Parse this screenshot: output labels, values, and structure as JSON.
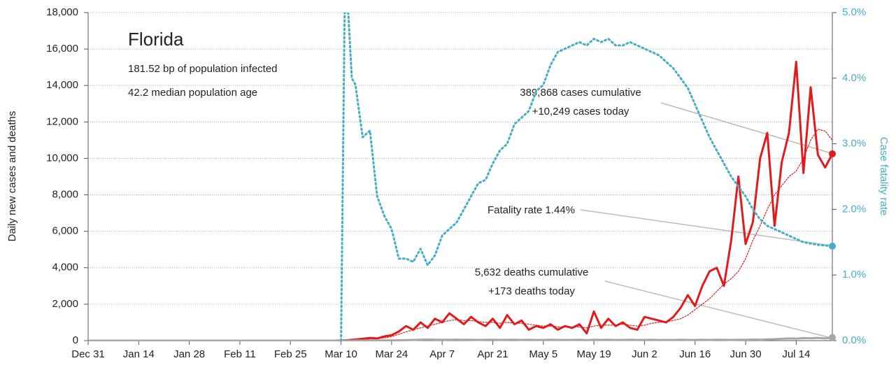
{
  "chart_data": {
    "type": "line",
    "title": "Florida",
    "subtitle": [
      "181.52 bp of population infected",
      "42.2 median population age"
    ],
    "ylabel": "Daily new cases and deaths",
    "y2label": "Case fatality rate",
    "annotations": {
      "cases": [
        "389,868 cases cumulative",
        "+10,249 cases today"
      ],
      "fatality": [
        "Fatality rate 1.44%"
      ],
      "deaths": [
        "5,632 deaths cumulative",
        "+173 deaths today"
      ]
    },
    "xlim": [
      0,
      206
    ],
    "xticks": [
      {
        "value": 0,
        "label": "Dec 31"
      },
      {
        "value": 14,
        "label": "Jan 14"
      },
      {
        "value": 28,
        "label": "Jan 28"
      },
      {
        "value": 42,
        "label": "Feb 11"
      },
      {
        "value": 56,
        "label": "Feb 25"
      },
      {
        "value": 70,
        "label": "Mar 10"
      },
      {
        "value": 84,
        "label": "Mar 24"
      },
      {
        "value": 98,
        "label": "Apr 7"
      },
      {
        "value": 112,
        "label": "Apr 21"
      },
      {
        "value": 126,
        "label": "May 5"
      },
      {
        "value": 140,
        "label": "May 19"
      },
      {
        "value": 154,
        "label": "Jun 2"
      },
      {
        "value": 168,
        "label": "Jun 16"
      },
      {
        "value": 182,
        "label": "Jun 30"
      },
      {
        "value": 196,
        "label": "Jul 14"
      }
    ],
    "ylim": [
      0,
      18000
    ],
    "yticks": [
      0,
      {
        "value": 2000,
        "label": "2,000"
      },
      {
        "value": 4000,
        "label": "4,000"
      },
      {
        "value": 6000,
        "label": "6,000"
      },
      {
        "value": 8000,
        "label": "8,000"
      },
      {
        "value": 10000,
        "label": "10,000"
      },
      {
        "value": 12000,
        "label": "12,000"
      },
      {
        "value": 14000,
        "label": "14,000"
      },
      {
        "value": 16000,
        "label": "16,000"
      },
      {
        "value": 18000,
        "label": "18,000"
      }
    ],
    "y2lim": [
      0,
      5
    ],
    "y2ticks": [
      {
        "value": 0,
        "label": "0.0%"
      },
      {
        "value": 1,
        "label": "1.0%"
      },
      {
        "value": 2,
        "label": "2.0%"
      },
      {
        "value": 3,
        "label": "3.0%"
      },
      {
        "value": 4,
        "label": "4.0%"
      },
      {
        "value": 5,
        "label": "5.0%"
      }
    ],
    "grid": true,
    "x": [
      0,
      60,
      62,
      64,
      66,
      68,
      70,
      72,
      74,
      76,
      78,
      80,
      82,
      84,
      86,
      88,
      90,
      92,
      94,
      96,
      98,
      100,
      102,
      104,
      106,
      108,
      110,
      112,
      114,
      116,
      118,
      120,
      122,
      124,
      126,
      128,
      130,
      132,
      134,
      136,
      138,
      140,
      142,
      144,
      146,
      148,
      150,
      152,
      154,
      156,
      158,
      160,
      162,
      164,
      166,
      168,
      170,
      172,
      174,
      176,
      178,
      180,
      182,
      184,
      186,
      188,
      190,
      192,
      194,
      196,
      198,
      200,
      202,
      204,
      206
    ],
    "series": [
      {
        "color": "#e31a1c",
        "style": "solid",
        "width": 3,
        "end_dot": true,
        "values": [
          0,
          0,
          0,
          0,
          0,
          0,
          10,
          30,
          60,
          100,
          150,
          120,
          230,
          300,
          500,
          800,
          600,
          1000,
          700,
          1200,
          1000,
          1500,
          1200,
          900,
          1300,
          1000,
          800,
          1200,
          700,
          1400,
          900,
          1100,
          600,
          800,
          700,
          900,
          600,
          800,
          700,
          900,
          400,
          1600,
          700,
          1200,
          800,
          1000,
          700,
          600,
          1300,
          1200,
          1100,
          1000,
          1300,
          1800,
          2500,
          1900,
          3000,
          3800,
          4000,
          3000,
          5500,
          9000,
          5300,
          6500,
          10000,
          11400,
          6300,
          9800,
          11400,
          15300,
          9200,
          13900,
          10200,
          9500,
          10249
        ]
      },
      {
        "color": "#e31a1c",
        "style": "dotted",
        "width": 1.2,
        "values": [
          0,
          0,
          0,
          0,
          0,
          0,
          5,
          15,
          30,
          60,
          90,
          110,
          150,
          220,
          350,
          480,
          600,
          700,
          800,
          900,
          1000,
          1100,
          1150,
          1100,
          1100,
          1050,
          1000,
          1000,
          950,
          1000,
          950,
          950,
          900,
          850,
          800,
          800,
          750,
          750,
          750,
          750,
          700,
          800,
          850,
          850,
          850,
          900,
          850,
          800,
          850,
          950,
          1000,
          1050,
          1100,
          1200,
          1400,
          1700,
          2000,
          2300,
          2700,
          3100,
          3400,
          3800,
          4500,
          5500,
          6300,
          7200,
          8000,
          8500,
          9000,
          9300,
          10000,
          11000,
          11600,
          11500,
          11000
        ]
      },
      {
        "color": "#a6a6a6",
        "style": "solid",
        "width": 3,
        "end_dot": true,
        "values": [
          0,
          0,
          0,
          0,
          0,
          0,
          0,
          1,
          2,
          3,
          5,
          8,
          10,
          15,
          20,
          30,
          40,
          50,
          60,
          50,
          45,
          50,
          55,
          50,
          45,
          40,
          50,
          45,
          40,
          50,
          45,
          40,
          45,
          35,
          40,
          45,
          40,
          35,
          40,
          45,
          30,
          50,
          40,
          45,
          35,
          40,
          45,
          35,
          40,
          45,
          35,
          40,
          35,
          45,
          40,
          35,
          45,
          40,
          50,
          45,
          40,
          50,
          45,
          60,
          50,
          70,
          80,
          100,
          120,
          110,
          140,
          130,
          150,
          120,
          173
        ]
      },
      {
        "color": "#45aec4",
        "style": "dotted",
        "width": 3,
        "axis": "y2",
        "end_dot": true,
        "x": [
          70,
          71,
          72,
          73,
          74,
          76,
          78,
          80,
          82,
          84,
          86,
          88,
          90,
          92,
          94,
          96,
          98,
          100,
          102,
          104,
          106,
          108,
          110,
          112,
          114,
          116,
          118,
          120,
          122,
          124,
          126,
          128,
          130,
          132,
          134,
          136,
          138,
          140,
          142,
          144,
          146,
          148,
          150,
          152,
          154,
          156,
          158,
          160,
          162,
          164,
          166,
          168,
          170,
          172,
          174,
          176,
          178,
          180,
          182,
          184,
          186,
          188,
          190,
          192,
          194,
          196,
          198,
          200,
          202,
          204,
          206
        ],
        "values": [
          0,
          5.0,
          5.0,
          4.0,
          3.9,
          3.1,
          3.2,
          2.2,
          1.9,
          1.7,
          1.25,
          1.25,
          1.2,
          1.4,
          1.15,
          1.3,
          1.6,
          1.7,
          1.8,
          2.0,
          2.2,
          2.4,
          2.45,
          2.7,
          2.9,
          3.0,
          3.3,
          3.4,
          3.5,
          3.8,
          3.9,
          4.2,
          4.4,
          4.45,
          4.5,
          4.55,
          4.5,
          4.6,
          4.55,
          4.6,
          4.5,
          4.5,
          4.55,
          4.5,
          4.45,
          4.4,
          4.35,
          4.25,
          4.15,
          4.0,
          3.85,
          3.6,
          3.35,
          3.1,
          2.9,
          2.7,
          2.5,
          2.35,
          2.2,
          2.0,
          1.85,
          1.75,
          1.7,
          1.65,
          1.6,
          1.55,
          1.5,
          1.48,
          1.46,
          1.45,
          1.44
        ]
      }
    ]
  }
}
